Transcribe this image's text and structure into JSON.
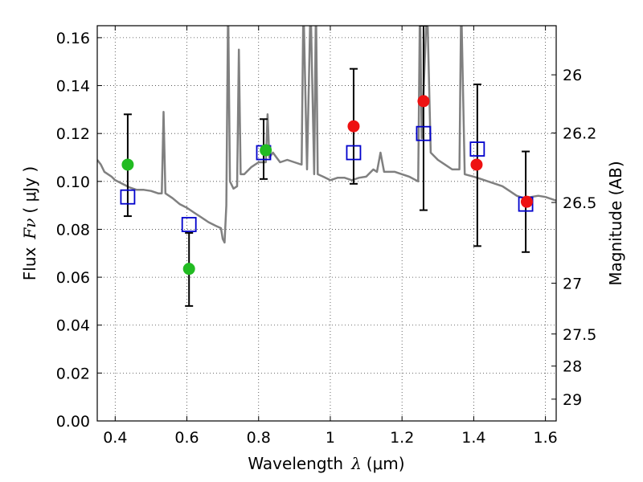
{
  "chart_data": {
    "type": "scatter",
    "xlabel_prefix": "Wavelength",
    "xlabel_symbol": "λ",
    "xlabel_unit": "(μm)",
    "ylabel_prefix": "Flux",
    "ylabel_symbol": "Fν",
    "ylabel_unit": "( μJy )",
    "y2label": "Magnitude (AB)",
    "xlim": [
      0.35,
      1.63
    ],
    "ylim": [
      0.0,
      0.165
    ],
    "grid": true,
    "x_ticks": [
      0.4,
      0.6,
      0.8,
      1.0,
      1.2,
      1.4,
      1.6
    ],
    "x_tick_labels": [
      "0.4",
      "0.6",
      "0.8",
      "1",
      "1.2",
      "1.4",
      "1.6"
    ],
    "y_ticks": [
      0.0,
      0.02,
      0.04,
      0.06,
      0.08,
      0.1,
      0.12,
      0.14,
      0.16
    ],
    "y_tick_labels": [
      "0.00",
      "0.02",
      "0.04",
      "0.06",
      "0.08",
      "0.10",
      "0.12",
      "0.14",
      "0.16"
    ],
    "mag_ticks": [
      {
        "label": "26",
        "flux": 0.1445
      },
      {
        "label": "26.2",
        "flux": 0.1202
      },
      {
        "label": "26.5",
        "flux": 0.0912
      },
      {
        "label": "27",
        "flux": 0.0575
      },
      {
        "label": "27.5",
        "flux": 0.0363
      },
      {
        "label": "28",
        "flux": 0.0229
      },
      {
        "label": "29",
        "flux": 0.0091
      }
    ],
    "series": [
      {
        "marker": "square",
        "color": "#0000cc",
        "points": [
          {
            "x": 0.435,
            "y": 0.0935,
            "err": [
              0.0855,
              0.128
            ]
          },
          {
            "x": 0.606,
            "y": 0.082,
            "err": [
              0.048,
              0.0785
            ]
          },
          {
            "x": 0.814,
            "y": 0.112,
            "err": [
              0.101,
              0.126
            ]
          },
          {
            "x": 1.065,
            "y": 0.112,
            "err": [
              0.099,
              0.147
            ]
          },
          {
            "x": 1.26,
            "y": 0.12,
            "err": [
              0.088,
              0.165
            ]
          },
          {
            "x": 1.41,
            "y": 0.1135,
            "err": [
              0.073,
              0.1405
            ]
          },
          {
            "x": 1.545,
            "y": 0.0905,
            "err": [
              0.0705,
              0.1125
            ]
          }
        ]
      },
      {
        "marker": "circle",
        "color": "#22bb22",
        "points": [
          {
            "x": 0.435,
            "y": 0.107
          },
          {
            "x": 0.606,
            "y": 0.0635
          },
          {
            "x": 0.82,
            "y": 0.113
          }
        ]
      },
      {
        "marker": "circle",
        "color": "#ee1111",
        "points": [
          {
            "x": 1.065,
            "y": 0.123
          },
          {
            "x": 1.26,
            "y": 0.1335
          },
          {
            "x": 1.408,
            "y": 0.107
          },
          {
            "x": 1.548,
            "y": 0.0915
          }
        ]
      }
    ],
    "model_spectrum": {
      "color": "#808080",
      "points": [
        [
          0.35,
          0.109
        ],
        [
          0.36,
          0.107
        ],
        [
          0.37,
          0.104
        ],
        [
          0.38,
          0.103
        ],
        [
          0.39,
          0.102
        ],
        [
          0.4,
          0.1005
        ],
        [
          0.42,
          0.099
        ],
        [
          0.44,
          0.0975
        ],
        [
          0.46,
          0.0965
        ],
        [
          0.48,
          0.0965
        ],
        [
          0.5,
          0.096
        ],
        [
          0.52,
          0.095
        ],
        [
          0.53,
          0.095
        ],
        [
          0.535,
          0.129
        ],
        [
          0.54,
          0.095
        ],
        [
          0.56,
          0.093
        ],
        [
          0.58,
          0.0905
        ],
        [
          0.6,
          0.089
        ],
        [
          0.62,
          0.087
        ],
        [
          0.64,
          0.085
        ],
        [
          0.66,
          0.083
        ],
        [
          0.68,
          0.0815
        ],
        [
          0.695,
          0.0805
        ],
        [
          0.7,
          0.076
        ],
        [
          0.705,
          0.0745
        ],
        [
          0.71,
          0.09
        ],
        [
          0.715,
          0.175
        ],
        [
          0.72,
          0.1
        ],
        [
          0.73,
          0.097
        ],
        [
          0.74,
          0.098
        ],
        [
          0.745,
          0.155
        ],
        [
          0.75,
          0.103
        ],
        [
          0.76,
          0.103
        ],
        [
          0.78,
          0.106
        ],
        [
          0.8,
          0.108
        ],
        [
          0.82,
          0.108
        ],
        [
          0.825,
          0.128
        ],
        [
          0.83,
          0.11
        ],
        [
          0.84,
          0.112
        ],
        [
          0.85,
          0.11
        ],
        [
          0.86,
          0.108
        ],
        [
          0.88,
          0.109
        ],
        [
          0.9,
          0.108
        ],
        [
          0.92,
          0.107
        ],
        [
          0.925,
          0.175
        ],
        [
          0.935,
          0.105
        ],
        [
          0.945,
          0.175
        ],
        [
          0.955,
          0.103
        ],
        [
          0.96,
          0.175
        ],
        [
          0.965,
          0.103
        ],
        [
          0.98,
          0.102
        ],
        [
          1.0,
          0.1005
        ],
        [
          1.02,
          0.1015
        ],
        [
          1.04,
          0.1015
        ],
        [
          1.06,
          0.1005
        ],
        [
          1.08,
          0.1015
        ],
        [
          1.1,
          0.102
        ],
        [
          1.12,
          0.105
        ],
        [
          1.13,
          0.104
        ],
        [
          1.14,
          0.112
        ],
        [
          1.15,
          0.104
        ],
        [
          1.18,
          0.104
        ],
        [
          1.2,
          0.103
        ],
        [
          1.22,
          0.102
        ],
        [
          1.245,
          0.1
        ],
        [
          1.25,
          0.175
        ],
        [
          1.255,
          0.118
        ],
        [
          1.27,
          0.175
        ],
        [
          1.28,
          0.112
        ],
        [
          1.3,
          0.109
        ],
        [
          1.32,
          0.107
        ],
        [
          1.34,
          0.105
        ],
        [
          1.36,
          0.105
        ],
        [
          1.365,
          0.175
        ],
        [
          1.375,
          0.103
        ],
        [
          1.4,
          0.102
        ],
        [
          1.42,
          0.101
        ],
        [
          1.44,
          0.1
        ],
        [
          1.46,
          0.099
        ],
        [
          1.48,
          0.098
        ],
        [
          1.5,
          0.096
        ],
        [
          1.52,
          0.094
        ],
        [
          1.54,
          0.093
        ],
        [
          1.56,
          0.0935
        ],
        [
          1.58,
          0.094
        ],
        [
          1.6,
          0.0935
        ],
        [
          1.62,
          0.0925
        ],
        [
          1.63,
          0.092
        ]
      ]
    }
  }
}
